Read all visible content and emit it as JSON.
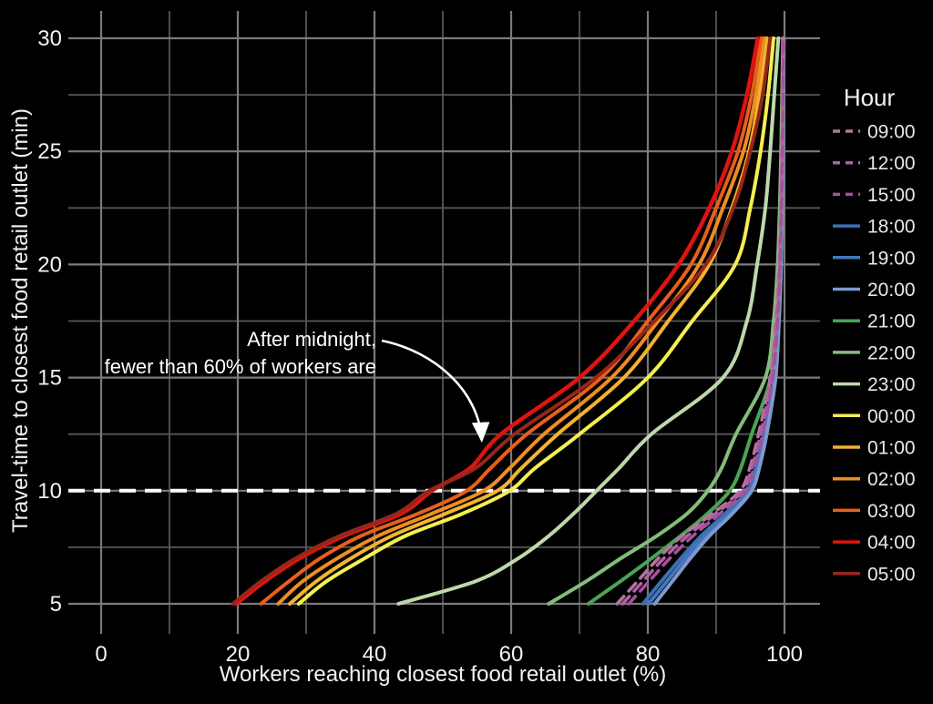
{
  "chart_data": {
    "type": "line",
    "title": "",
    "xlabel": "Workers reaching closest food retail outlet (%)",
    "ylabel": "Travel-time to closest food retail outlet (min)",
    "xlim": [
      0,
      100
    ],
    "ylim": [
      5,
      30
    ],
    "x_ticks_labeled": [
      0,
      20,
      40,
      60,
      80,
      100
    ],
    "x_gridline_step": 10,
    "y_ticks_labeled": [
      5,
      10,
      15,
      20,
      25,
      30
    ],
    "y_gridline_step": 2.5,
    "grid": "on",
    "background_color": "#000000",
    "gridline_color_major": "#7a7a7a",
    "gridline_color_minor": "#575757",
    "text_color": "#f2f2f2",
    "legend_position": "right",
    "legend_title": "Hour",
    "reference_line": {
      "y": 10,
      "color": "#ffffff",
      "style": "dashed"
    },
    "annotation": {
      "line1": "After midnight,",
      "line2": "fewer than 60% of workers are",
      "arrow_target": {
        "pct": 55.7,
        "min": 11.9
      }
    },
    "series": [
      {
        "name": "09:00",
        "color": "#b5749e",
        "dashed": true,
        "points": [
          [
            75.5,
            5
          ],
          [
            78.5,
            6
          ],
          [
            81.5,
            7
          ],
          [
            85,
            8
          ],
          [
            89.5,
            9
          ],
          [
            93.5,
            10
          ],
          [
            94.9,
            11
          ],
          [
            96.2,
            12.5
          ],
          [
            97.9,
            15
          ],
          [
            98.7,
            17.5
          ],
          [
            99.2,
            20
          ],
          [
            99.45,
            22.5
          ],
          [
            99.6,
            25
          ],
          [
            99.72,
            27.5
          ],
          [
            99.8,
            30
          ]
        ]
      },
      {
        "name": "12:00",
        "color": "#ad62a5",
        "dashed": true,
        "points": [
          [
            76.3,
            5
          ],
          [
            79.3,
            6
          ],
          [
            82.3,
            7
          ],
          [
            85.8,
            8
          ],
          [
            90,
            9
          ],
          [
            93.9,
            10
          ],
          [
            95.2,
            11
          ],
          [
            96.5,
            12.5
          ],
          [
            98.1,
            15
          ],
          [
            98.85,
            17.5
          ],
          [
            99.3,
            20
          ],
          [
            99.5,
            22.5
          ],
          [
            99.65,
            25
          ],
          [
            99.75,
            27.5
          ],
          [
            99.82,
            30
          ]
        ]
      },
      {
        "name": "15:00",
        "color": "#a8509c",
        "dashed": true,
        "points": [
          [
            77.2,
            5
          ],
          [
            80.2,
            6
          ],
          [
            83.2,
            7
          ],
          [
            86.6,
            8
          ],
          [
            90.6,
            9
          ],
          [
            94.3,
            10
          ],
          [
            95.5,
            11
          ],
          [
            96.8,
            12.5
          ],
          [
            98.3,
            15
          ],
          [
            99,
            17.5
          ],
          [
            99.35,
            20
          ],
          [
            99.55,
            22.5
          ],
          [
            99.7,
            25
          ],
          [
            99.78,
            27.5
          ],
          [
            99.85,
            30
          ]
        ]
      },
      {
        "name": "18:00",
        "color": "#3b70b6",
        "dashed": false,
        "points": [
          [
            79.3,
            5
          ],
          [
            82,
            6
          ],
          [
            84.8,
            7
          ],
          [
            87.8,
            8
          ],
          [
            91.4,
            9
          ],
          [
            94.6,
            10
          ],
          [
            95.8,
            11
          ],
          [
            97,
            12.5
          ],
          [
            98.5,
            15
          ],
          [
            99.1,
            17.5
          ],
          [
            99.4,
            20
          ],
          [
            99.6,
            22.5
          ],
          [
            99.72,
            25
          ],
          [
            99.8,
            27.5
          ],
          [
            99.87,
            30
          ]
        ]
      },
      {
        "name": "19:00",
        "color": "#4478bc",
        "dashed": false,
        "points": [
          [
            80.1,
            5
          ],
          [
            82.8,
            6
          ],
          [
            85.5,
            7
          ],
          [
            88.4,
            8
          ],
          [
            91.9,
            9
          ],
          [
            94.9,
            10
          ],
          [
            96,
            11
          ],
          [
            97.2,
            12.5
          ],
          [
            98.6,
            15
          ],
          [
            99.15,
            17.5
          ],
          [
            99.45,
            20
          ],
          [
            99.62,
            22.5
          ],
          [
            99.74,
            25
          ],
          [
            99.82,
            27.5
          ],
          [
            99.88,
            30
          ]
        ]
      },
      {
        "name": "20:00",
        "color": "#7d99ce",
        "dashed": false,
        "points": [
          [
            81,
            5
          ],
          [
            83.6,
            6
          ],
          [
            86.2,
            7
          ],
          [
            89,
            8
          ],
          [
            92.4,
            9
          ],
          [
            95.2,
            10
          ],
          [
            96.3,
            11
          ],
          [
            97.4,
            12.5
          ],
          [
            98.7,
            15
          ],
          [
            99.2,
            17.5
          ],
          [
            99.5,
            20
          ],
          [
            99.65,
            22.5
          ],
          [
            99.76,
            25
          ],
          [
            99.83,
            27.5
          ],
          [
            99.9,
            30
          ]
        ]
      },
      {
        "name": "21:00",
        "color": "#4ca357",
        "dashed": false,
        "points": [
          [
            71.3,
            5
          ],
          [
            76,
            6
          ],
          [
            80.5,
            7
          ],
          [
            84.8,
            8
          ],
          [
            88.8,
            9
          ],
          [
            92,
            10
          ],
          [
            93.6,
            11
          ],
          [
            95.2,
            12.5
          ],
          [
            98,
            15
          ],
          [
            98.9,
            17.5
          ],
          [
            99.3,
            20
          ],
          [
            99.5,
            22.5
          ],
          [
            99.65,
            25
          ],
          [
            99.75,
            27.5
          ],
          [
            99.85,
            30
          ]
        ]
      },
      {
        "name": "22:00",
        "color": "#85bc7c",
        "dashed": false,
        "points": [
          [
            65.5,
            5
          ],
          [
            71,
            6
          ],
          [
            76,
            7
          ],
          [
            81.3,
            8
          ],
          [
            85.8,
            9
          ],
          [
            88.8,
            10
          ],
          [
            90.8,
            11
          ],
          [
            92.9,
            12.5
          ],
          [
            97.2,
            15
          ],
          [
            98.4,
            17.5
          ],
          [
            99,
            20
          ],
          [
            99.3,
            22.5
          ],
          [
            99.5,
            25
          ],
          [
            99.65,
            27.5
          ],
          [
            99.78,
            30
          ]
        ]
      },
      {
        "name": "23:00",
        "color": "#bdd9ab",
        "dashed": false,
        "points": [
          [
            43.5,
            5
          ],
          [
            54.8,
            6
          ],
          [
            61,
            7
          ],
          [
            65.5,
            8
          ],
          [
            69.2,
            9
          ],
          [
            72.5,
            10
          ],
          [
            75.8,
            11
          ],
          [
            80.5,
            12.5
          ],
          [
            91,
            15
          ],
          [
            94.5,
            17.5
          ],
          [
            96,
            20
          ],
          [
            97.2,
            22.5
          ],
          [
            97.9,
            25
          ],
          [
            98.5,
            27.5
          ],
          [
            99.1,
            30
          ]
        ]
      },
      {
        "name": "00:00",
        "color": "#f4ef50",
        "dashed": false,
        "points": [
          [
            28.9,
            5
          ],
          [
            33,
            6
          ],
          [
            38.5,
            7
          ],
          [
            44.5,
            8
          ],
          [
            53,
            9
          ],
          [
            59.8,
            10
          ],
          [
            63.5,
            11
          ],
          [
            70,
            12.5
          ],
          [
            80,
            15
          ],
          [
            86.5,
            17.5
          ],
          [
            92.8,
            20
          ],
          [
            95,
            22.5
          ],
          [
            96.5,
            25
          ],
          [
            97.6,
            27.5
          ],
          [
            98.4,
            30
          ]
        ]
      },
      {
        "name": "01:00",
        "color": "#f2b42e",
        "dashed": false,
        "points": [
          [
            27.6,
            5
          ],
          [
            31.5,
            6
          ],
          [
            36.5,
            7
          ],
          [
            42.5,
            8
          ],
          [
            50.5,
            9
          ],
          [
            58,
            10
          ],
          [
            61.5,
            11
          ],
          [
            66.8,
            12.5
          ],
          [
            76.5,
            15
          ],
          [
            83,
            17.5
          ],
          [
            89,
            20
          ],
          [
            92.3,
            22.5
          ],
          [
            94.8,
            25
          ],
          [
            96.3,
            27.5
          ],
          [
            97.4,
            30
          ]
        ]
      },
      {
        "name": "02:00",
        "color": "#ee8d22",
        "dashed": false,
        "points": [
          [
            25.9,
            5
          ],
          [
            29.5,
            6
          ],
          [
            34.5,
            7
          ],
          [
            40.5,
            8
          ],
          [
            48.5,
            9
          ],
          [
            56,
            10
          ],
          [
            59.8,
            11
          ],
          [
            64.8,
            12.5
          ],
          [
            74.7,
            15
          ],
          [
            81.5,
            17.5
          ],
          [
            87.5,
            20
          ],
          [
            91,
            22.5
          ],
          [
            94,
            25
          ],
          [
            95.8,
            27.5
          ],
          [
            97,
            30
          ]
        ]
      },
      {
        "name": "03:00",
        "color": "#e75f1b",
        "dashed": false,
        "points": [
          [
            23.4,
            5
          ],
          [
            27.5,
            6
          ],
          [
            32,
            7
          ],
          [
            38,
            8
          ],
          [
            46.5,
            9
          ],
          [
            53.5,
            10
          ],
          [
            57,
            11
          ],
          [
            62.3,
            12.5
          ],
          [
            73.2,
            15
          ],
          [
            80,
            17.5
          ],
          [
            86.3,
            20
          ],
          [
            90,
            22.5
          ],
          [
            93.2,
            25
          ],
          [
            95.2,
            27.5
          ],
          [
            96.6,
            30
          ]
        ]
      },
      {
        "name": "04:00",
        "color": "#df1410",
        "dashed": false,
        "points": [
          [
            19.8,
            5
          ],
          [
            24,
            6
          ],
          [
            29,
            7
          ],
          [
            35.5,
            8
          ],
          [
            44,
            9
          ],
          [
            48.4,
            10
          ],
          [
            54,
            11
          ],
          [
            58.5,
            12.5
          ],
          [
            70,
            15
          ],
          [
            78,
            17.5
          ],
          [
            84.5,
            20
          ],
          [
            89,
            22.5
          ],
          [
            92.3,
            25
          ],
          [
            94.5,
            27.5
          ],
          [
            96.1,
            30
          ]
        ]
      },
      {
        "name": "05:00",
        "color": "#97261a",
        "dashed": false,
        "points": [
          [
            19.3,
            5
          ],
          [
            23.4,
            6
          ],
          [
            28.4,
            7
          ],
          [
            34.9,
            8
          ],
          [
            43.3,
            9
          ],
          [
            48,
            10
          ],
          [
            54.8,
            11
          ],
          [
            60.5,
            12.5
          ],
          [
            72.4,
            15
          ],
          [
            81,
            17.5
          ],
          [
            88.5,
            20
          ],
          [
            92.5,
            22.5
          ],
          [
            95,
            25
          ],
          [
            96.8,
            27.5
          ],
          [
            97.9,
            30
          ]
        ]
      }
    ]
  }
}
